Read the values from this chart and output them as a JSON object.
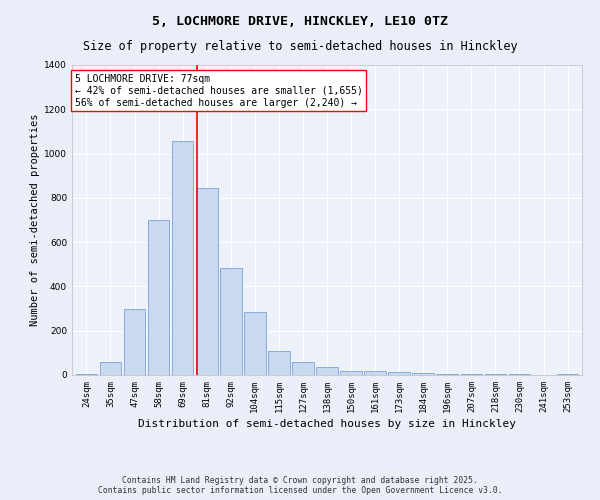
{
  "title_line1": "5, LOCHMORE DRIVE, HINCKLEY, LE10 0TZ",
  "title_line2": "Size of property relative to semi-detached houses in Hinckley",
  "xlabel": "Distribution of semi-detached houses by size in Hinckley",
  "ylabel": "Number of semi-detached properties",
  "bar_labels": [
    "24sqm",
    "35sqm",
    "47sqm",
    "58sqm",
    "69sqm",
    "81sqm",
    "92sqm",
    "104sqm",
    "115sqm",
    "127sqm",
    "138sqm",
    "150sqm",
    "161sqm",
    "173sqm",
    "184sqm",
    "196sqm",
    "207sqm",
    "218sqm",
    "230sqm",
    "241sqm",
    "253sqm"
  ],
  "bar_values": [
    5,
    60,
    300,
    700,
    1055,
    845,
    485,
    285,
    110,
    60,
    35,
    20,
    20,
    15,
    10,
    5,
    5,
    5,
    5,
    0,
    5
  ],
  "bar_color": "#c9d9f0",
  "bar_edge_color": "#7ba4d4",
  "annotation_title": "5 LOCHMORE DRIVE: 77sqm",
  "annotation_line2": "← 42% of semi-detached houses are smaller (1,655)",
  "annotation_line3": "56% of semi-detached houses are larger (2,240) →",
  "vline_color": "red",
  "ylim": [
    0,
    1400
  ],
  "yticks": [
    0,
    200,
    400,
    600,
    800,
    1000,
    1200,
    1400
  ],
  "bg_color": "#eaeef8",
  "plot_bg_color": "#edf1fa",
  "grid_color": "#ffffff",
  "footnote_line1": "Contains HM Land Registry data © Crown copyright and database right 2025.",
  "footnote_line2": "Contains public sector information licensed under the Open Government Licence v3.0.",
  "title_fontsize": 9.5,
  "subtitle_fontsize": 8.5,
  "xlabel_fontsize": 8,
  "ylabel_fontsize": 7.5,
  "tick_fontsize": 6.5,
  "annotation_fontsize": 7,
  "footnote_fontsize": 5.8
}
